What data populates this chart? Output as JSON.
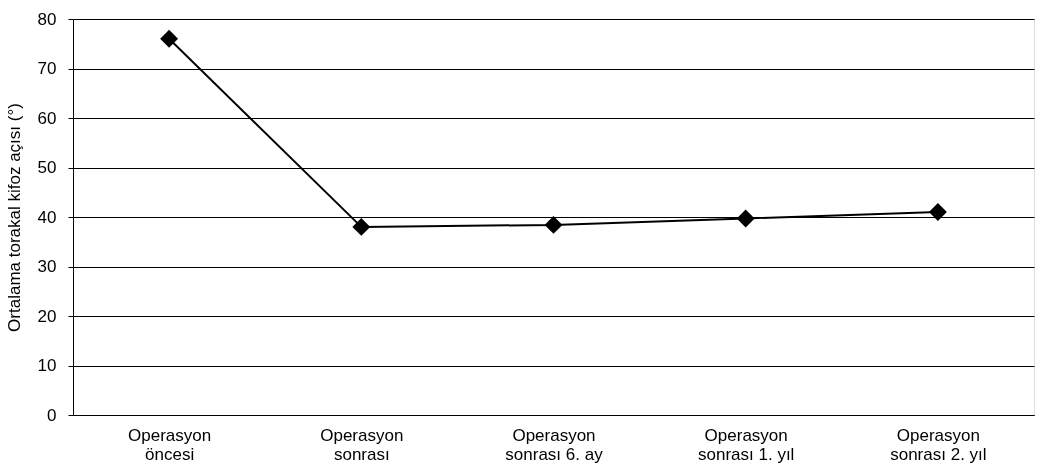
{
  "chart_data": {
    "type": "line",
    "ylabel": "Ortalama torakal kifoz açısı (°)",
    "categories": [
      "Operasyon öncesi",
      "Operasyon sonrası",
      "Operasyon sonrası 6. ay",
      "Operasyon sonrası 1. yıl",
      "Operasyon sonrası 2. yıl"
    ],
    "series": [
      {
        "color": "#000000",
        "values": [
          76,
          38,
          38.4,
          39.7,
          41
        ]
      }
    ],
    "ylim": [
      0,
      80
    ],
    "yticks": [
      0,
      10,
      20,
      30,
      40,
      50,
      60,
      70,
      80
    ],
    "grid": "y",
    "marker": "diamond",
    "line_style": "solid",
    "legend": false
  }
}
